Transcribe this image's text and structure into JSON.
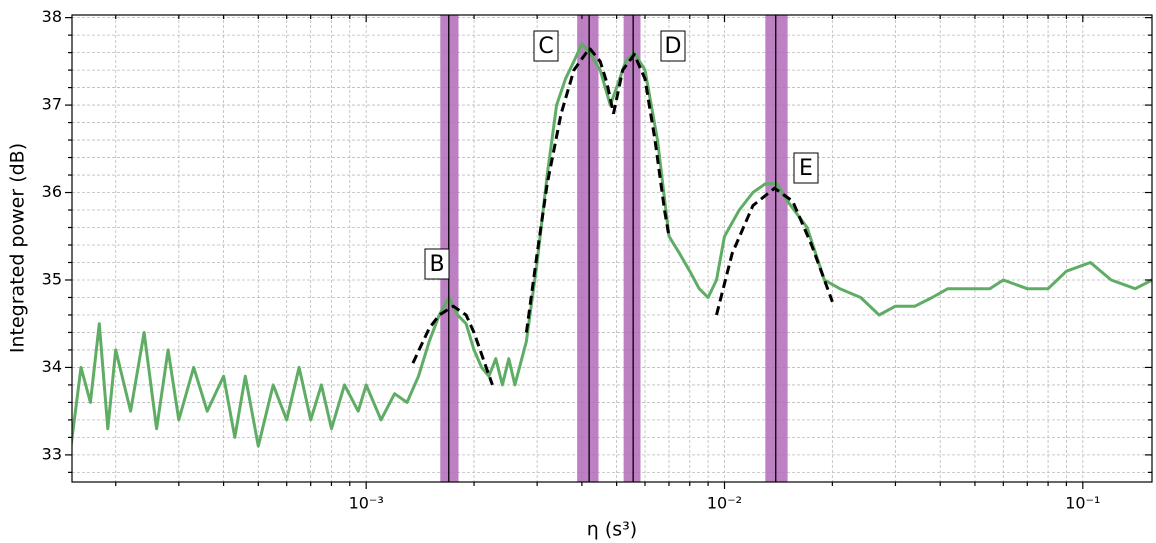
{
  "chart_data": {
    "type": "line",
    "xlabel": "η (s³)",
    "ylabel": "Integrated power (dB)",
    "xscale": "log",
    "grid": true,
    "xlim": [
      0.000151,
      0.156
    ],
    "ylim": [
      32.69,
      38.03
    ],
    "xticks": [
      {
        "value": 0.001,
        "label": "10⁻³"
      },
      {
        "value": 0.01,
        "label": "10⁻²"
      },
      {
        "value": 0.1,
        "label": "10⁻¹"
      }
    ],
    "xminorticks": [
      0.0002,
      0.0003,
      0.0004,
      0.0005,
      0.0006,
      0.0007,
      0.0008,
      0.0009,
      0.002,
      0.003,
      0.004,
      0.005,
      0.006,
      0.007,
      0.008,
      0.009,
      0.02,
      0.03,
      0.04,
      0.05,
      0.06,
      0.07,
      0.08,
      0.09
    ],
    "yticks": [
      33,
      34,
      35,
      36,
      37,
      38
    ],
    "yminorticks": [
      32.8,
      33.2,
      33.4,
      33.6,
      33.8,
      34.2,
      34.4,
      34.6,
      34.8,
      35.2,
      35.4,
      35.6,
      35.8,
      36.2,
      36.4,
      36.6,
      36.8,
      37.2,
      37.4,
      37.6,
      37.8
    ],
    "series": [
      {
        "color": "#5fad65",
        "x": [
          0.00015,
          0.00016,
          0.00017,
          0.00018,
          0.00019,
          0.0002,
          0.00022,
          0.00024,
          0.00026,
          0.00028,
          0.0003,
          0.00033,
          0.00036,
          0.0004,
          0.00043,
          0.00046,
          0.0005,
          0.00055,
          0.0006,
          0.00065,
          0.0007,
          0.00075,
          0.0008,
          0.00087,
          0.00095,
          0.001,
          0.0011,
          0.0012,
          0.0013,
          0.0014,
          0.0015,
          0.0016,
          0.0017,
          0.0018,
          0.0019,
          0.002,
          0.0021,
          0.0022,
          0.0023,
          0.0024,
          0.0025,
          0.0026,
          0.0028,
          0.003,
          0.0032,
          0.0034,
          0.0036,
          0.0038,
          0.004,
          0.0042,
          0.0045,
          0.0048,
          0.005,
          0.0053,
          0.0056,
          0.006,
          0.0065,
          0.007,
          0.0075,
          0.008,
          0.0085,
          0.009,
          0.0095,
          0.01,
          0.011,
          0.012,
          0.013,
          0.014,
          0.015,
          0.017,
          0.019,
          0.021,
          0.024,
          0.027,
          0.03,
          0.034,
          0.038,
          0.042,
          0.05,
          0.055,
          0.06,
          0.07,
          0.08,
          0.09,
          0.105,
          0.12,
          0.14,
          0.156
        ],
        "values": [
          33.1,
          34.0,
          33.6,
          34.5,
          33.3,
          34.2,
          33.5,
          34.4,
          33.3,
          34.2,
          33.4,
          34.0,
          33.5,
          33.9,
          33.2,
          33.9,
          33.1,
          33.8,
          33.4,
          34.0,
          33.4,
          33.8,
          33.3,
          33.8,
          33.5,
          33.8,
          33.4,
          33.7,
          33.6,
          33.9,
          34.3,
          34.6,
          34.8,
          34.6,
          34.5,
          34.2,
          34.0,
          33.9,
          34.1,
          33.8,
          34.1,
          33.8,
          34.3,
          35.2,
          36.2,
          37.0,
          37.3,
          37.5,
          37.7,
          37.6,
          37.4,
          37.0,
          37.2,
          37.5,
          37.6,
          37.4,
          36.6,
          35.5,
          35.3,
          35.1,
          34.9,
          34.8,
          35.0,
          35.5,
          35.8,
          36.0,
          36.1,
          36.1,
          35.9,
          35.6,
          35.0,
          34.9,
          34.8,
          34.6,
          34.7,
          34.7,
          34.8,
          34.9,
          34.9,
          34.9,
          35.0,
          34.9,
          34.9,
          35.1,
          35.2,
          35.0,
          34.9,
          35.0
        ]
      },
      {
        "color": "#000000",
        "dash": true,
        "x": [
          0.00135,
          0.0015,
          0.0016,
          0.00175,
          0.0019,
          0.002,
          0.0021,
          0.00225,
          null,
          0.0028,
          0.003,
          0.0032,
          0.0035,
          0.0038,
          0.0042,
          0.0045,
          0.0047,
          0.0049,
          null,
          0.0049,
          0.0052,
          0.0056,
          0.006,
          0.0064,
          0.0068,
          0.007,
          null,
          0.0095,
          0.0105,
          0.012,
          0.0138,
          0.0155,
          0.0175,
          0.02
        ],
        "values": [
          34.05,
          34.45,
          34.6,
          34.7,
          34.6,
          34.4,
          34.15,
          33.8,
          null,
          34.4,
          35.3,
          36.1,
          36.9,
          37.4,
          37.65,
          37.5,
          37.25,
          36.9,
          null,
          36.9,
          37.4,
          37.58,
          37.3,
          36.6,
          35.8,
          35.5,
          null,
          34.6,
          35.3,
          35.85,
          36.05,
          35.9,
          35.4,
          34.75
        ]
      }
    ],
    "peaks": [
      {
        "label": "B",
        "center": 0.0017,
        "band": [
          0.00161,
          0.00181
        ]
      },
      {
        "label": "C",
        "center": 0.00419,
        "band": [
          0.00388,
          0.00445
        ]
      },
      {
        "label": "D",
        "center": 0.00556,
        "band": [
          0.00523,
          0.00583
        ]
      },
      {
        "label": "E",
        "center": 0.0139,
        "band": [
          0.013,
          0.015
        ]
      }
    ],
    "band_color": "#b06ab9"
  }
}
